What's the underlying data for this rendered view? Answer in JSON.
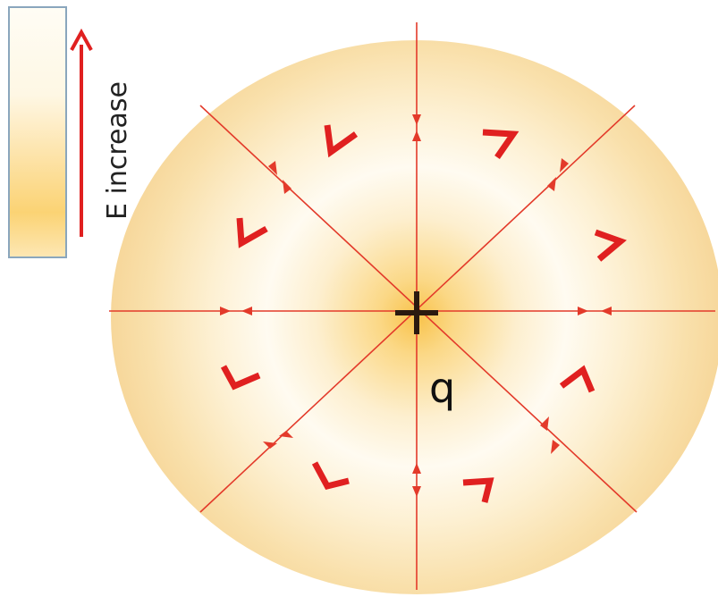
{
  "legend": {
    "label": "E increase",
    "bar_colors": {
      "light": "#fffcf2",
      "mid": "#fde8b8",
      "dark": "#f9c84e"
    },
    "border_color": "#8aa6bd",
    "arrow_color": "#e02020"
  },
  "charge": {
    "symbol": "+",
    "label": "q"
  },
  "field": {
    "line_color": "#e33a2a",
    "chevron_color": "#e02020",
    "glow_color": "#fbd98a",
    "line_count": 8
  }
}
